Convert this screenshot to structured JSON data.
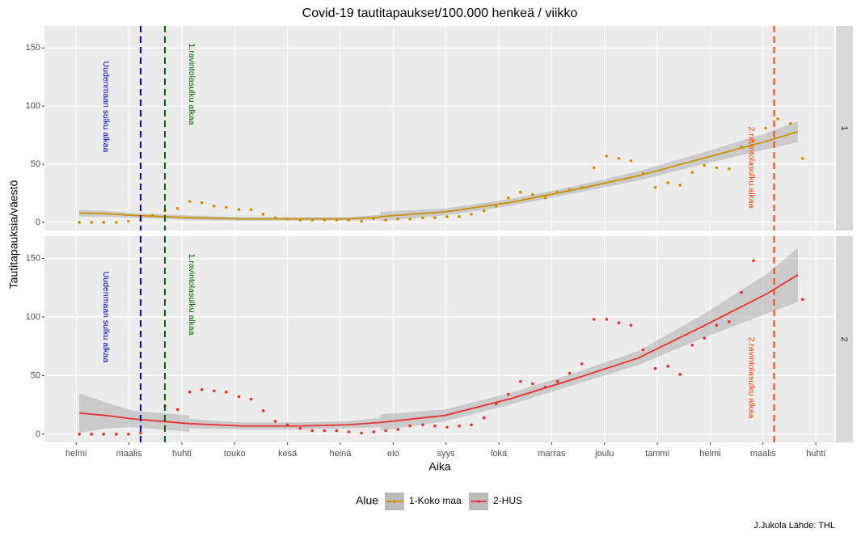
{
  "chart_data": {
    "type": "scatter",
    "title": "Covid-19 tautitapaukset/100.000 henkeä / viikko",
    "x_label": "Aika",
    "y_label": "Tautitapauksia/väestö",
    "legend_title": "Alue",
    "caption": "J.Jukola  Lähde: THL",
    "xlim": [
      -0.6,
      14.35
    ],
    "xticks": [
      {
        "value": 0,
        "label": "helmi"
      },
      {
        "value": 1,
        "label": "maalis"
      },
      {
        "value": 2,
        "label": "huhti"
      },
      {
        "value": 3,
        "label": "touko"
      },
      {
        "value": 4,
        "label": "kesä"
      },
      {
        "value": 5,
        "label": "heinä"
      },
      {
        "value": 6,
        "label": "elo"
      },
      {
        "value": 7,
        "label": "syys"
      },
      {
        "value": 8,
        "label": "loka"
      },
      {
        "value": 9,
        "label": "marras"
      },
      {
        "value": 10,
        "label": "joulu"
      },
      {
        "value": 11,
        "label": "tammi"
      },
      {
        "value": 12,
        "label": "helmi"
      },
      {
        "value": 13,
        "label": "maalis"
      },
      {
        "value": 14,
        "label": "huhti"
      }
    ],
    "ylim": [
      -7,
      169
    ],
    "yticks": [
      0,
      50,
      100,
      150
    ],
    "grid": true,
    "legend": "bottom",
    "x": [
      0.06,
      0.29,
      0.52,
      0.76,
      0.99,
      1.22,
      1.45,
      1.68,
      1.92,
      2.15,
      2.38,
      2.61,
      2.84,
      3.08,
      3.31,
      3.54,
      3.77,
      4.0,
      4.24,
      4.47,
      4.7,
      4.93,
      5.16,
      5.4,
      5.63,
      5.86,
      6.09,
      6.32,
      6.56,
      6.79,
      7.02,
      7.25,
      7.48,
      7.72,
      7.95,
      8.18,
      8.41,
      8.64,
      8.88,
      9.11,
      9.34,
      9.57,
      9.8,
      10.04,
      10.27,
      10.5,
      10.73,
      10.96,
      11.2,
      11.43,
      11.66,
      11.89,
      12.12,
      12.36,
      12.59,
      12.82,
      13.05,
      13.28,
      13.52,
      13.75
    ],
    "fit_x": [
      0.06,
      0.56,
      1.08,
      1.63,
      2.14,
      null,
      2.14,
      3.16,
      4.23,
      5.14,
      5.76,
      null,
      5.76,
      6.98,
      8.2,
      9.42,
      10.64,
      11.86,
      13.08,
      13.66
    ],
    "annotations": [
      {
        "x": 1.22,
        "label": "Uudenmaan sulku alkaa",
        "color": "#0000b3"
      },
      {
        "x": 1.68,
        "label": "1.ravintolasulku alkaa",
        "color": "#006400"
      },
      {
        "x": 13.21,
        "label": "2.ravintolasulku alkaa",
        "color": "#ff4500"
      }
    ],
    "series": [
      {
        "name": "1-Koko maa",
        "strip": "1",
        "color": "#cc9000",
        "values": [
          0,
          0,
          0,
          0,
          1,
          2,
          6,
          10,
          12,
          18,
          17,
          14,
          13,
          11,
          11,
          7,
          4,
          3,
          2,
          2,
          2,
          2,
          2,
          1,
          3,
          2,
          3,
          3,
          4,
          4,
          5,
          5,
          7,
          10,
          14,
          21,
          26,
          24,
          21,
          26,
          28,
          30,
          47,
          57,
          55,
          53,
          42,
          30,
          34,
          32,
          43,
          49,
          47,
          46,
          65,
          70,
          81,
          89,
          85,
          55
        ],
        "fit": [
          8,
          7.5,
          6,
          5,
          4,
          null,
          4,
          3,
          3,
          3,
          4.5,
          null,
          5,
          9,
          17,
          28,
          40,
          55,
          70,
          78
        ],
        "fit_lower": [
          5,
          5,
          4,
          3,
          2,
          null,
          2,
          1.5,
          1.5,
          1.5,
          2.5,
          null,
          1,
          6,
          14,
          25,
          36,
          50,
          63,
          69
        ],
        "fit_upper": [
          11,
          10,
          8,
          7,
          6,
          null,
          6,
          4.5,
          4.5,
          4.5,
          6.5,
          null,
          9,
          12,
          20,
          31,
          44,
          60,
          77,
          87
        ]
      },
      {
        "name": "2-HUS",
        "strip": "2",
        "color": "#e8312f",
        "values": [
          0,
          0,
          0,
          0,
          0,
          1,
          null,
          24,
          21,
          36,
          38,
          37,
          36,
          32,
          30,
          20,
          11,
          8,
          5,
          3,
          3,
          3,
          2,
          1,
          2,
          3,
          4,
          7,
          8,
          7,
          6,
          7,
          8,
          14,
          26,
          34,
          45,
          43,
          40,
          45,
          52,
          60,
          98,
          98,
          95,
          93,
          72,
          56,
          58,
          51,
          76,
          82,
          93,
          96,
          121,
          148,
          null,
          null,
          null,
          115
        ],
        "fit": [
          18,
          16,
          13,
          11,
          9,
          null,
          9,
          7,
          7,
          8,
          10,
          null,
          10,
          16,
          30,
          47,
          65,
          92,
          120,
          136
        ],
        "fit_lower": [
          1,
          5,
          6,
          4,
          2,
          null,
          5,
          4,
          4,
          5,
          6,
          null,
          3,
          11,
          25,
          42,
          59,
          82,
          103,
          113
        ],
        "fit_upper": [
          35,
          27,
          20,
          18,
          16,
          null,
          13,
          10,
          10,
          11,
          14,
          null,
          17,
          21,
          35,
          52,
          71,
          102,
          137,
          159
        ]
      }
    ]
  }
}
